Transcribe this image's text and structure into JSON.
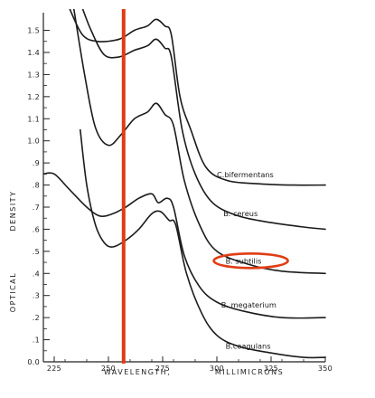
{
  "chart_data": {
    "type": "line",
    "xlabel_left": "WAVELENGTH,",
    "xlabel_right": "MILLIMICRONS",
    "ylabel_left": "OPTICAL",
    "ylabel_right": "DENSITY",
    "xlim": [
      220,
      350
    ],
    "ylim": [
      0.0,
      1.58
    ],
    "x_ticks": [
      225,
      250,
      275,
      300,
      325,
      350
    ],
    "y_ticks": [
      0.0,
      0.1,
      0.2,
      0.3,
      0.4,
      0.5,
      0.6,
      0.7,
      0.8,
      0.9,
      1.0,
      1.1,
      1.2,
      1.3,
      1.4,
      1.5
    ],
    "y_tick_labels": [
      "0.0",
      ".1",
      ".2",
      ".3",
      ".4",
      ".5",
      ".6",
      ".7",
      ".8",
      ".9",
      "1.0",
      "1.1",
      "1.2",
      "1.3",
      "1.4",
      "1.5"
    ],
    "vertical_marker": {
      "x": 257,
      "color": "#e03c14"
    },
    "highlight": {
      "series": "B. subtilis",
      "color": "#e03c14"
    },
    "series": [
      {
        "name": "C. bifermentans",
        "points": [
          [
            232,
            1.6
          ],
          [
            238,
            1.48
          ],
          [
            245,
            1.45
          ],
          [
            255,
            1.46
          ],
          [
            262,
            1.5
          ],
          [
            268,
            1.52
          ],
          [
            272,
            1.55
          ],
          [
            276,
            1.52
          ],
          [
            279,
            1.48
          ],
          [
            283,
            1.2
          ],
          [
            288,
            1.05
          ],
          [
            295,
            0.88
          ],
          [
            305,
            0.82
          ],
          [
            320,
            0.805
          ],
          [
            335,
            0.8
          ],
          [
            350,
            0.8
          ]
        ]
      },
      {
        "name": "B. cereus",
        "points": [
          [
            238,
            1.6
          ],
          [
            242,
            1.5
          ],
          [
            248,
            1.39
          ],
          [
            255,
            1.38
          ],
          [
            262,
            1.41
          ],
          [
            268,
            1.43
          ],
          [
            272,
            1.46
          ],
          [
            276,
            1.42
          ],
          [
            279,
            1.38
          ],
          [
            284,
            1.05
          ],
          [
            290,
            0.85
          ],
          [
            298,
            0.72
          ],
          [
            310,
            0.66
          ],
          [
            325,
            0.63
          ],
          [
            340,
            0.61
          ],
          [
            350,
            0.6
          ]
        ]
      },
      {
        "name": "B. subtilis",
        "points": [
          [
            234,
            1.6
          ],
          [
            239,
            1.3
          ],
          [
            244,
            1.06
          ],
          [
            250,
            0.98
          ],
          [
            256,
            1.03
          ],
          [
            262,
            1.1
          ],
          [
            268,
            1.13
          ],
          [
            272,
            1.17
          ],
          [
            276,
            1.12
          ],
          [
            280,
            1.07
          ],
          [
            285,
            0.82
          ],
          [
            292,
            0.62
          ],
          [
            300,
            0.5
          ],
          [
            315,
            0.44
          ],
          [
            330,
            0.41
          ],
          [
            350,
            0.4
          ]
        ]
      },
      {
        "name": "B. megaterium",
        "points": [
          [
            220,
            0.85
          ],
          [
            225,
            0.85
          ],
          [
            232,
            0.78
          ],
          [
            240,
            0.7
          ],
          [
            246,
            0.66
          ],
          [
            252,
            0.67
          ],
          [
            258,
            0.7
          ],
          [
            264,
            0.74
          ],
          [
            270,
            0.76
          ],
          [
            273,
            0.72
          ],
          [
            277,
            0.74
          ],
          [
            280,
            0.7
          ],
          [
            285,
            0.48
          ],
          [
            292,
            0.34
          ],
          [
            300,
            0.27
          ],
          [
            312,
            0.23
          ],
          [
            330,
            0.2
          ],
          [
            350,
            0.2
          ]
        ]
      },
      {
        "name": "B. coagulans",
        "points": [
          [
            237,
            1.05
          ],
          [
            240,
            0.8
          ],
          [
            244,
            0.62
          ],
          [
            248,
            0.54
          ],
          [
            252,
            0.52
          ],
          [
            258,
            0.55
          ],
          [
            264,
            0.6
          ],
          [
            270,
            0.67
          ],
          [
            274,
            0.68
          ],
          [
            278,
            0.64
          ],
          [
            281,
            0.62
          ],
          [
            286,
            0.4
          ],
          [
            293,
            0.22
          ],
          [
            300,
            0.12
          ],
          [
            310,
            0.07
          ],
          [
            325,
            0.04
          ],
          [
            340,
            0.02
          ],
          [
            350,
            0.02
          ]
        ]
      }
    ],
    "curve_labels": [
      {
        "text": "C.bifermentans",
        "x": 300,
        "y": 0.835
      },
      {
        "text": "B. cereus",
        "x": 303,
        "y": 0.66
      },
      {
        "text": "B. subtilis",
        "x": 304,
        "y": 0.445
      },
      {
        "text": "B. megaterium",
        "x": 302,
        "y": 0.245
      },
      {
        "text": "B.coagulans",
        "x": 304,
        "y": 0.06
      }
    ]
  }
}
